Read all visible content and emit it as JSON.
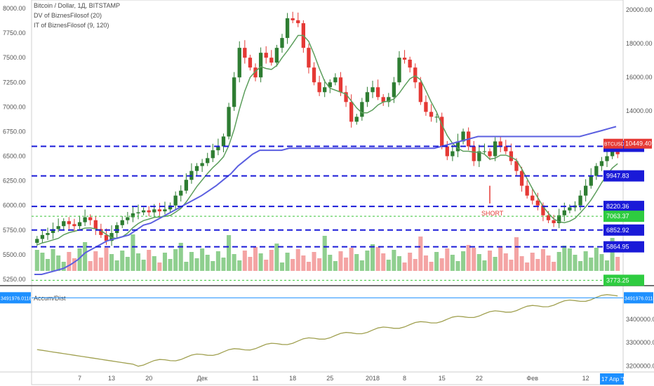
{
  "legend": {
    "title": "Bitcoin / Dollar, 1Д, BITSTAMP",
    "dv": "DV of BiznesFilosof (20)",
    "it": "IT of BiznesFilosof (9, 120)",
    "accum": "Accum/Dist"
  },
  "colors": {
    "up": "#2e7d32",
    "down": "#e53935",
    "volume_up": "#8fcf8f",
    "volume_down": "#f4a4a4",
    "dv_line": "#5c9e5c",
    "dv_down": "#e53935",
    "it_line": "#5b5fe0",
    "levels": "#1a1ad8",
    "accum": "#a0a050"
  },
  "chart_data": {
    "type": "candlestick",
    "left_axis": {
      "ylim": [
        5200,
        8050
      ],
      "ticks": [
        "5250.00",
        "5500.00",
        "5750.00",
        "6000.00",
        "6250.00",
        "6500.00",
        "6750.00",
        "7000.00",
        "7250.00",
        "7500.00",
        "7750.00",
        "8000.00"
      ]
    },
    "right_axis": {
      "ticks": [
        "20000.00",
        "18000.00",
        "16000.00",
        "14000.00",
        "12000.00"
      ]
    },
    "x_ticks": [
      {
        "label": "7",
        "i": 8
      },
      {
        "label": "13",
        "i": 14
      },
      {
        "label": "20",
        "i": 21
      },
      {
        "label": "Дек",
        "i": 31
      },
      {
        "label": "11",
        "i": 41
      },
      {
        "label": "18",
        "i": 48
      },
      {
        "label": "25",
        "i": 55
      },
      {
        "label": "2018",
        "i": 63
      },
      {
        "label": "8",
        "i": 69
      },
      {
        "label": "15",
        "i": 76
      },
      {
        "label": "22",
        "i": 83
      },
      {
        "label": "Фев",
        "i": 93
      },
      {
        "label": "12",
        "i": 103
      }
    ],
    "current_date": "17 Апр '18",
    "levels": [
      {
        "price": 6600,
        "label": "11675.30"
      },
      {
        "price": 6300,
        "label": "9947.83"
      },
      {
        "price": 5990,
        "label": "8220.36"
      },
      {
        "price": 5750,
        "label": "6852.92"
      },
      {
        "price": 5580,
        "label": "5864.95"
      }
    ],
    "last_price": {
      "label": "10449.40",
      "tag": "BTCUSD"
    },
    "green_levels": [
      {
        "price": 5890,
        "label": "7063.37"
      },
      {
        "price": 5240,
        "label": "3773.25"
      }
    ],
    "annotation": {
      "text": "SHORT",
      "i": 85
    },
    "closes": [
      5660,
      5700,
      5720,
      5760,
      5790,
      5840,
      5810,
      5790,
      5830,
      5880,
      5850,
      5760,
      5700,
      5640,
      5720,
      5800,
      5850,
      5880,
      5920,
      5930,
      5950,
      5930,
      5960,
      5940,
      5960,
      6000,
      6100,
      6150,
      6260,
      6350,
      6400,
      6430,
      6480,
      6560,
      6600,
      6700,
      7000,
      7300,
      7600,
      7500,
      7400,
      7300,
      7550,
      7500,
      7450,
      7600,
      7700,
      7900,
      7880,
      7850,
      7600,
      7400,
      7250,
      7150,
      7200,
      7250,
      7300,
      7150,
      7050,
      6850,
      6900,
      7050,
      7150,
      7200,
      7100,
      7050,
      7100,
      7250,
      7500,
      7480,
      7400,
      7250,
      7050,
      6950,
      6900,
      6900,
      6600,
      6500,
      6550,
      6650,
      6750,
      6600,
      6450,
      6550,
      6550,
      6500,
      6650,
      6600,
      6550,
      6450,
      6350,
      6200,
      6100,
      6050,
      6000,
      5900,
      5850,
      5820,
      5900,
      5950,
      5980,
      6000,
      6100,
      6200,
      6300,
      6400,
      6450,
      6500,
      6550,
      6520
    ],
    "it_series": [
      5300,
      5300,
      5320,
      5340,
      5360,
      5400,
      5450,
      5520,
      5560,
      5600,
      5640,
      5660,
      5680,
      5700,
      5750,
      5800,
      5820,
      5860,
      5900,
      5940,
      5980,
      6020,
      6060,
      6100,
      6150,
      6200,
      6260,
      6320,
      6400,
      6460,
      6520,
      6560,
      6560,
      6560,
      6560,
      6580,
      6580,
      6580,
      6580,
      6580,
      6580,
      6580,
      6580,
      6580,
      6580,
      6580,
      6580,
      6580,
      6580,
      6580,
      6580,
      6580,
      6580,
      6580,
      6580,
      6580,
      6600,
      6620,
      6640,
      6660,
      6680,
      6700,
      6700,
      6700,
      6700,
      6700,
      6700,
      6700,
      6700,
      6700,
      6700,
      6700,
      6700,
      6700,
      6700,
      6700,
      6720,
      6740,
      6760,
      6780,
      6800
    ],
    "accum": {
      "ticks": [
        "3491976.0118",
        "3400000.0000",
        "3300000.0000",
        "3200000.0000"
      ],
      "ylim": [
        3180000,
        3520000
      ],
      "current": "3491976.0118"
    }
  }
}
